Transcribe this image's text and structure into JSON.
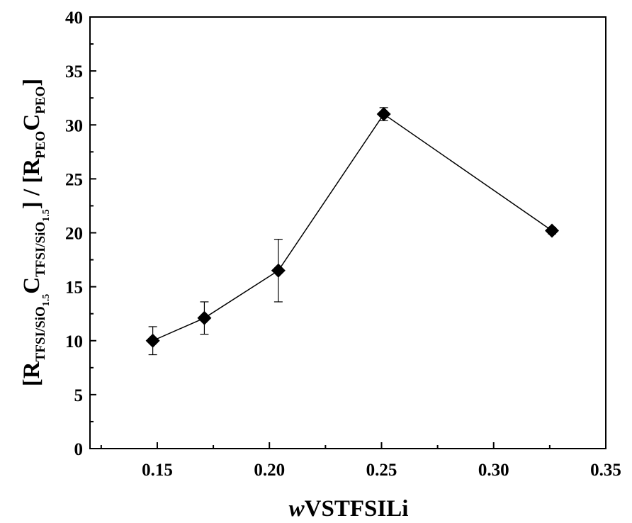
{
  "chart_data": {
    "type": "scatter",
    "connected": true,
    "marker": "diamond",
    "xlabel": {
      "italic_prefix": "w",
      "main": "VSTFSILi"
    },
    "ylabel": {
      "open": "[",
      "R1": "R",
      "R1_sub": "TFSI/SiO",
      "R1_subsub": "1.5",
      "C1": "C",
      "C1_sub": "TFSI/SiO",
      "C1_subsub": "1.5",
      "mid": "] / [",
      "R2": "R",
      "R2_sub": "PEO",
      "C2": "C",
      "C2_sub": "PEO",
      "close": "]"
    },
    "xlim": [
      0.12,
      0.35
    ],
    "ylim": [
      0,
      40
    ],
    "xticks": [
      0.15,
      0.2,
      0.25,
      0.3,
      0.35
    ],
    "xtick_labels": [
      "0.15",
      "0.20",
      "0.25",
      "0.30",
      "0.35"
    ],
    "yticks": [
      0,
      5,
      10,
      15,
      20,
      25,
      30,
      35,
      40
    ],
    "ytick_labels": [
      "0",
      "5",
      "10",
      "15",
      "20",
      "25",
      "30",
      "35",
      "40"
    ],
    "grid": false,
    "x": [
      0.148,
      0.171,
      0.204,
      0.251,
      0.326
    ],
    "y": [
      10.0,
      12.1,
      16.5,
      31.0,
      20.2
    ],
    "yerr": [
      1.3,
      1.5,
      2.9,
      0.6,
      0.3
    ]
  }
}
